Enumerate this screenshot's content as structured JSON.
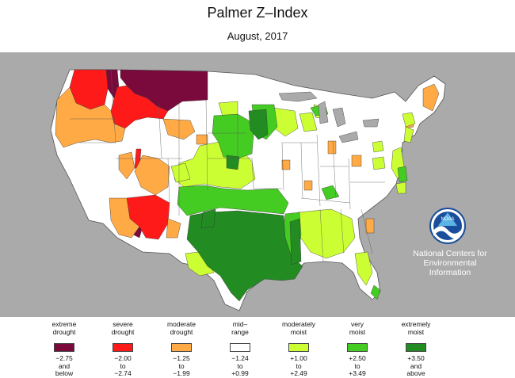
{
  "title": "Palmer Z–Index",
  "subtitle": "August, 2017",
  "agency": [
    "National Centers for",
    "Environmental",
    "Information"
  ],
  "logo_text": "NOAA",
  "colors": {
    "extreme_drought": "#7a0a3c",
    "severe_drought": "#ff1a1a",
    "moderate_drought": "#ffaa44",
    "mid_range": "#ffffff",
    "moderately_moist": "#ccff33",
    "very_moist": "#44cc22",
    "extremely_moist": "#228b22",
    "background": "#aaaaaa"
  },
  "legend": [
    {
      "label": [
        "extreme",
        "drought"
      ],
      "range": [
        "−2.75",
        "and",
        "below"
      ],
      "color": "#7a0a3c"
    },
    {
      "label": [
        "severe",
        "drought"
      ],
      "range": [
        "−2.00",
        "to",
        "−2.74"
      ],
      "color": "#ff1a1a"
    },
    {
      "label": [
        "moderate",
        "drought"
      ],
      "range": [
        "−1.25",
        "to",
        "−1.99"
      ],
      "color": "#ffaa44"
    },
    {
      "label": [
        "mid–",
        "range"
      ],
      "range": [
        "−1.24",
        "to",
        "+0.99"
      ],
      "color": "#ffffff"
    },
    {
      "label": [
        "moderately",
        "moist"
      ],
      "range": [
        "+1.00",
        "to",
        "+2.49"
      ],
      "color": "#ccff33"
    },
    {
      "label": [
        "very",
        "moist"
      ],
      "range": [
        "+2.50",
        "to",
        "+3.49"
      ],
      "color": "#44cc22"
    },
    {
      "label": [
        "extremely",
        "moist"
      ],
      "range": [
        "+3.50",
        "and",
        "above"
      ],
      "color": "#228b22"
    }
  ]
}
